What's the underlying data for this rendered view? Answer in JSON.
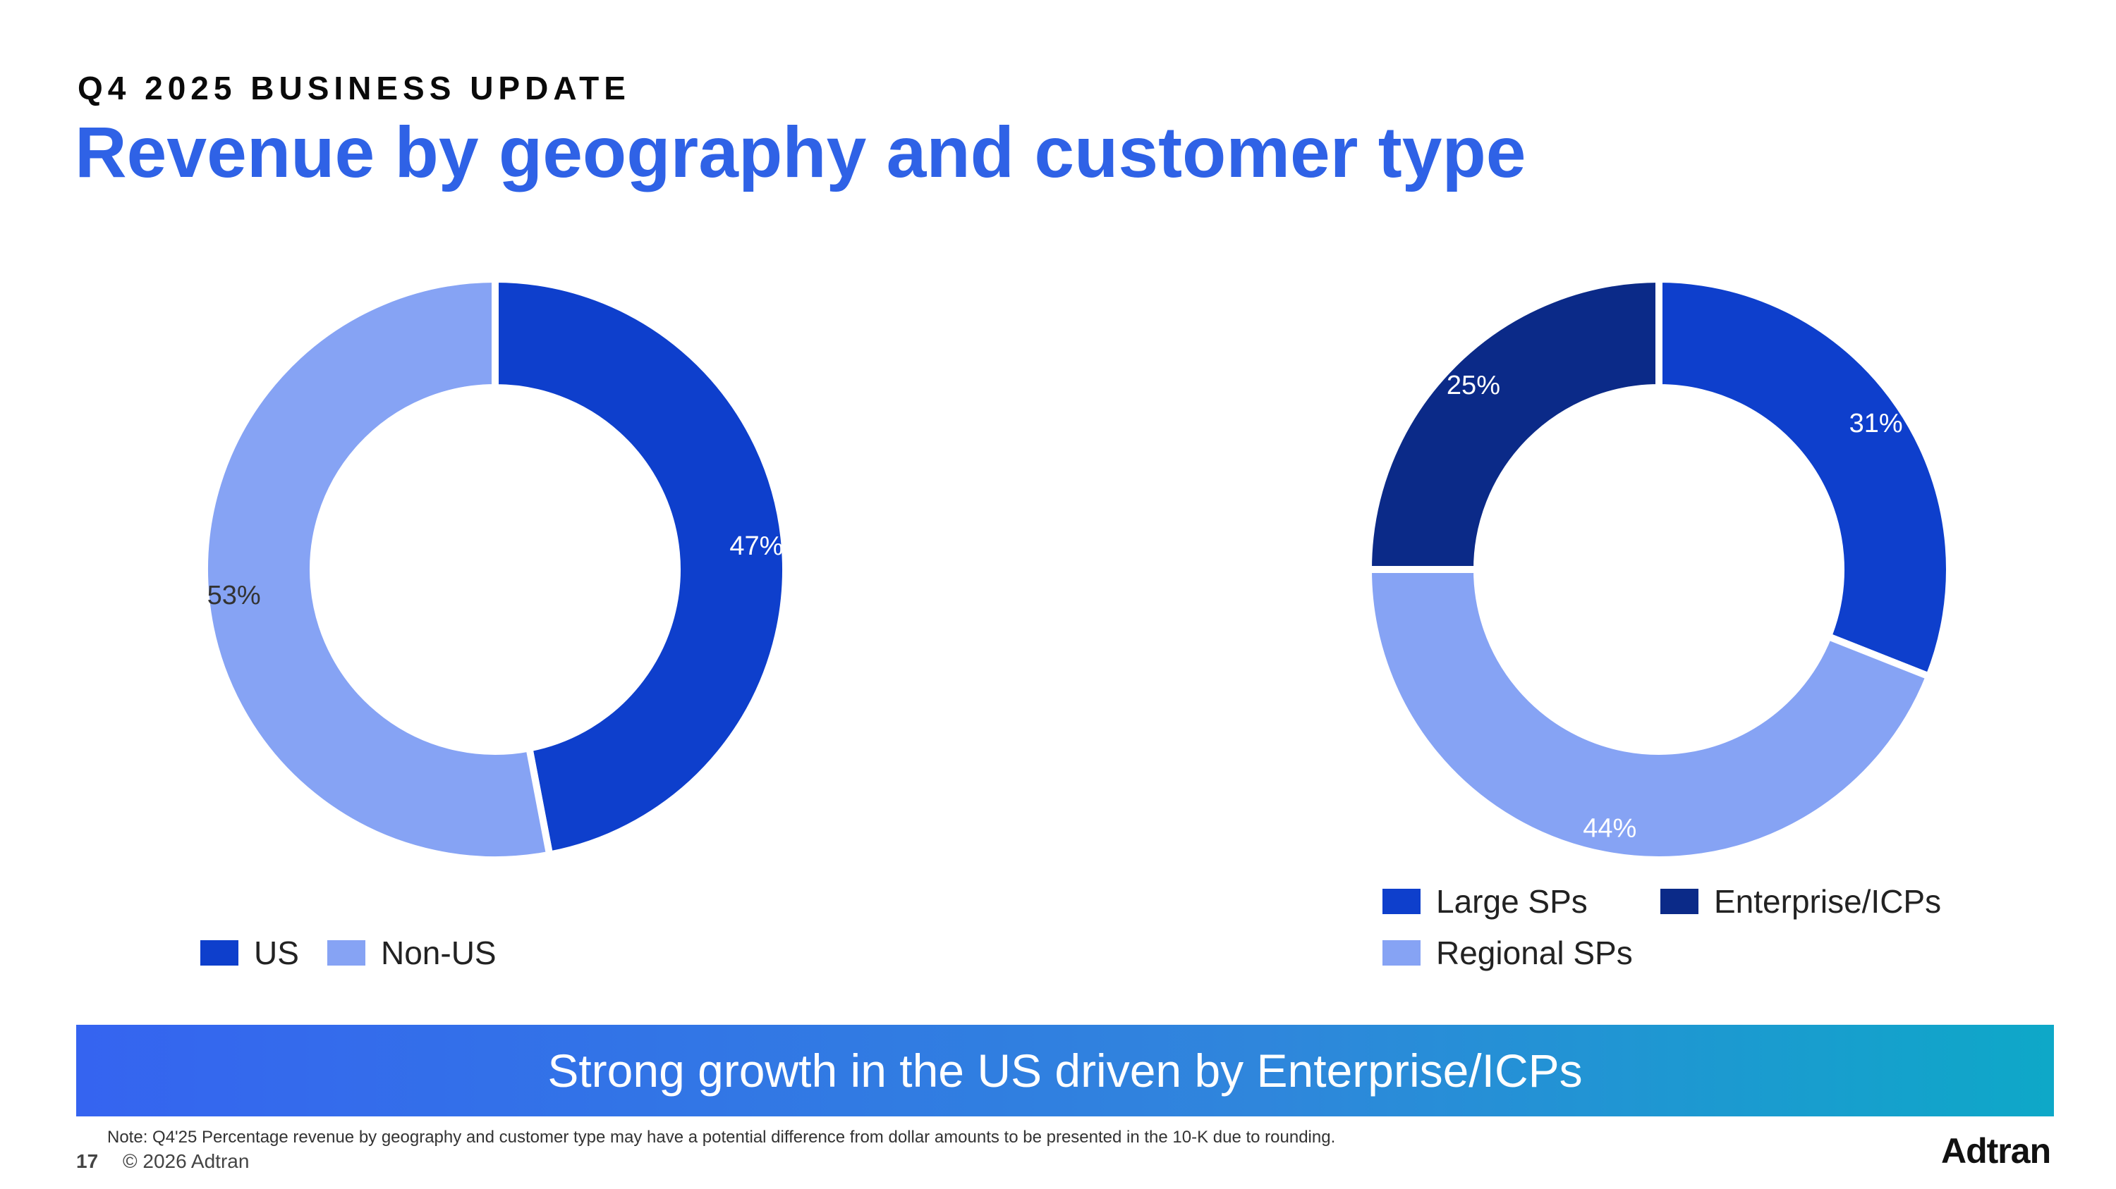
{
  "header": {
    "eyebrow": "Q4 2025 BUSINESS UPDATE",
    "title": "Revenue by geography and customer type"
  },
  "chart_data": [
    {
      "type": "pie",
      "donut": true,
      "categories": [
        "US",
        "Non-US"
      ],
      "values": [
        47,
        53
      ],
      "labels": [
        "47%",
        "53%"
      ],
      "colors": [
        "#0e3fcc",
        "#86a3f4"
      ],
      "legend_position": "bottom-left"
    },
    {
      "type": "pie",
      "donut": true,
      "categories": [
        "Large SPs",
        "Regional SPs",
        "Enterprise/ICPs"
      ],
      "values": [
        31,
        44,
        25
      ],
      "labels": [
        "31%",
        "44%",
        "25%"
      ],
      "colors": [
        "#0e3fcc",
        "#86a3f4",
        "#0b2a88"
      ],
      "legend_position": "bottom"
    }
  ],
  "banner": {
    "text": "Strong growth in the US driven by Enterprise/ICPs"
  },
  "footer": {
    "note": "Note: Q4'25 Percentage revenue by geography and customer type may have a potential difference from dollar amounts to be presented in the 10-K due to rounding.",
    "page_number": "17",
    "copyright": "© 2026 Adtran",
    "logo": "Adtran"
  },
  "colors": {
    "accent": "#2f62e6",
    "dark_blue": "#0b2a88",
    "mid_blue": "#0e3fcc",
    "light_blue": "#86a3f4"
  }
}
